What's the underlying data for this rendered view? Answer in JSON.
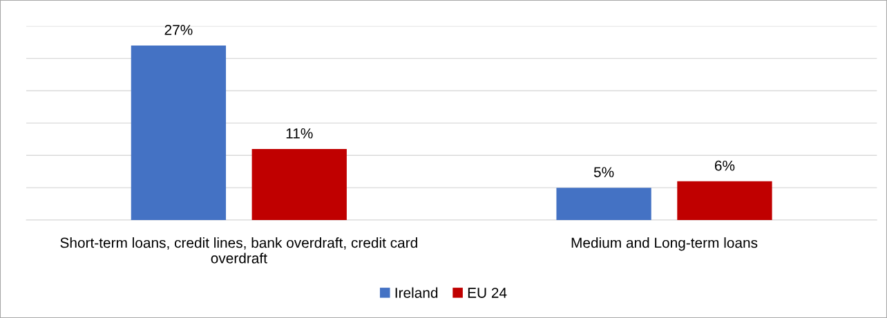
{
  "chart_data": {
    "type": "bar",
    "categories": [
      "Short-term loans, credit lines, bank overdraft, credit card\noverdraft",
      "Medium and Long-term loans"
    ],
    "series": [
      {
        "name": "Ireland",
        "color": "#4472c4",
        "values": [
          27,
          5
        ],
        "value_labels": [
          "27%",
          "5%"
        ]
      },
      {
        "name": "EU 24",
        "color": "#c00000",
        "values": [
          11,
          6
        ],
        "value_labels": [
          "11%",
          "6%"
        ]
      }
    ],
    "tick_labels": "x",
    "grid": "y",
    "legend": "bottom"
  }
}
